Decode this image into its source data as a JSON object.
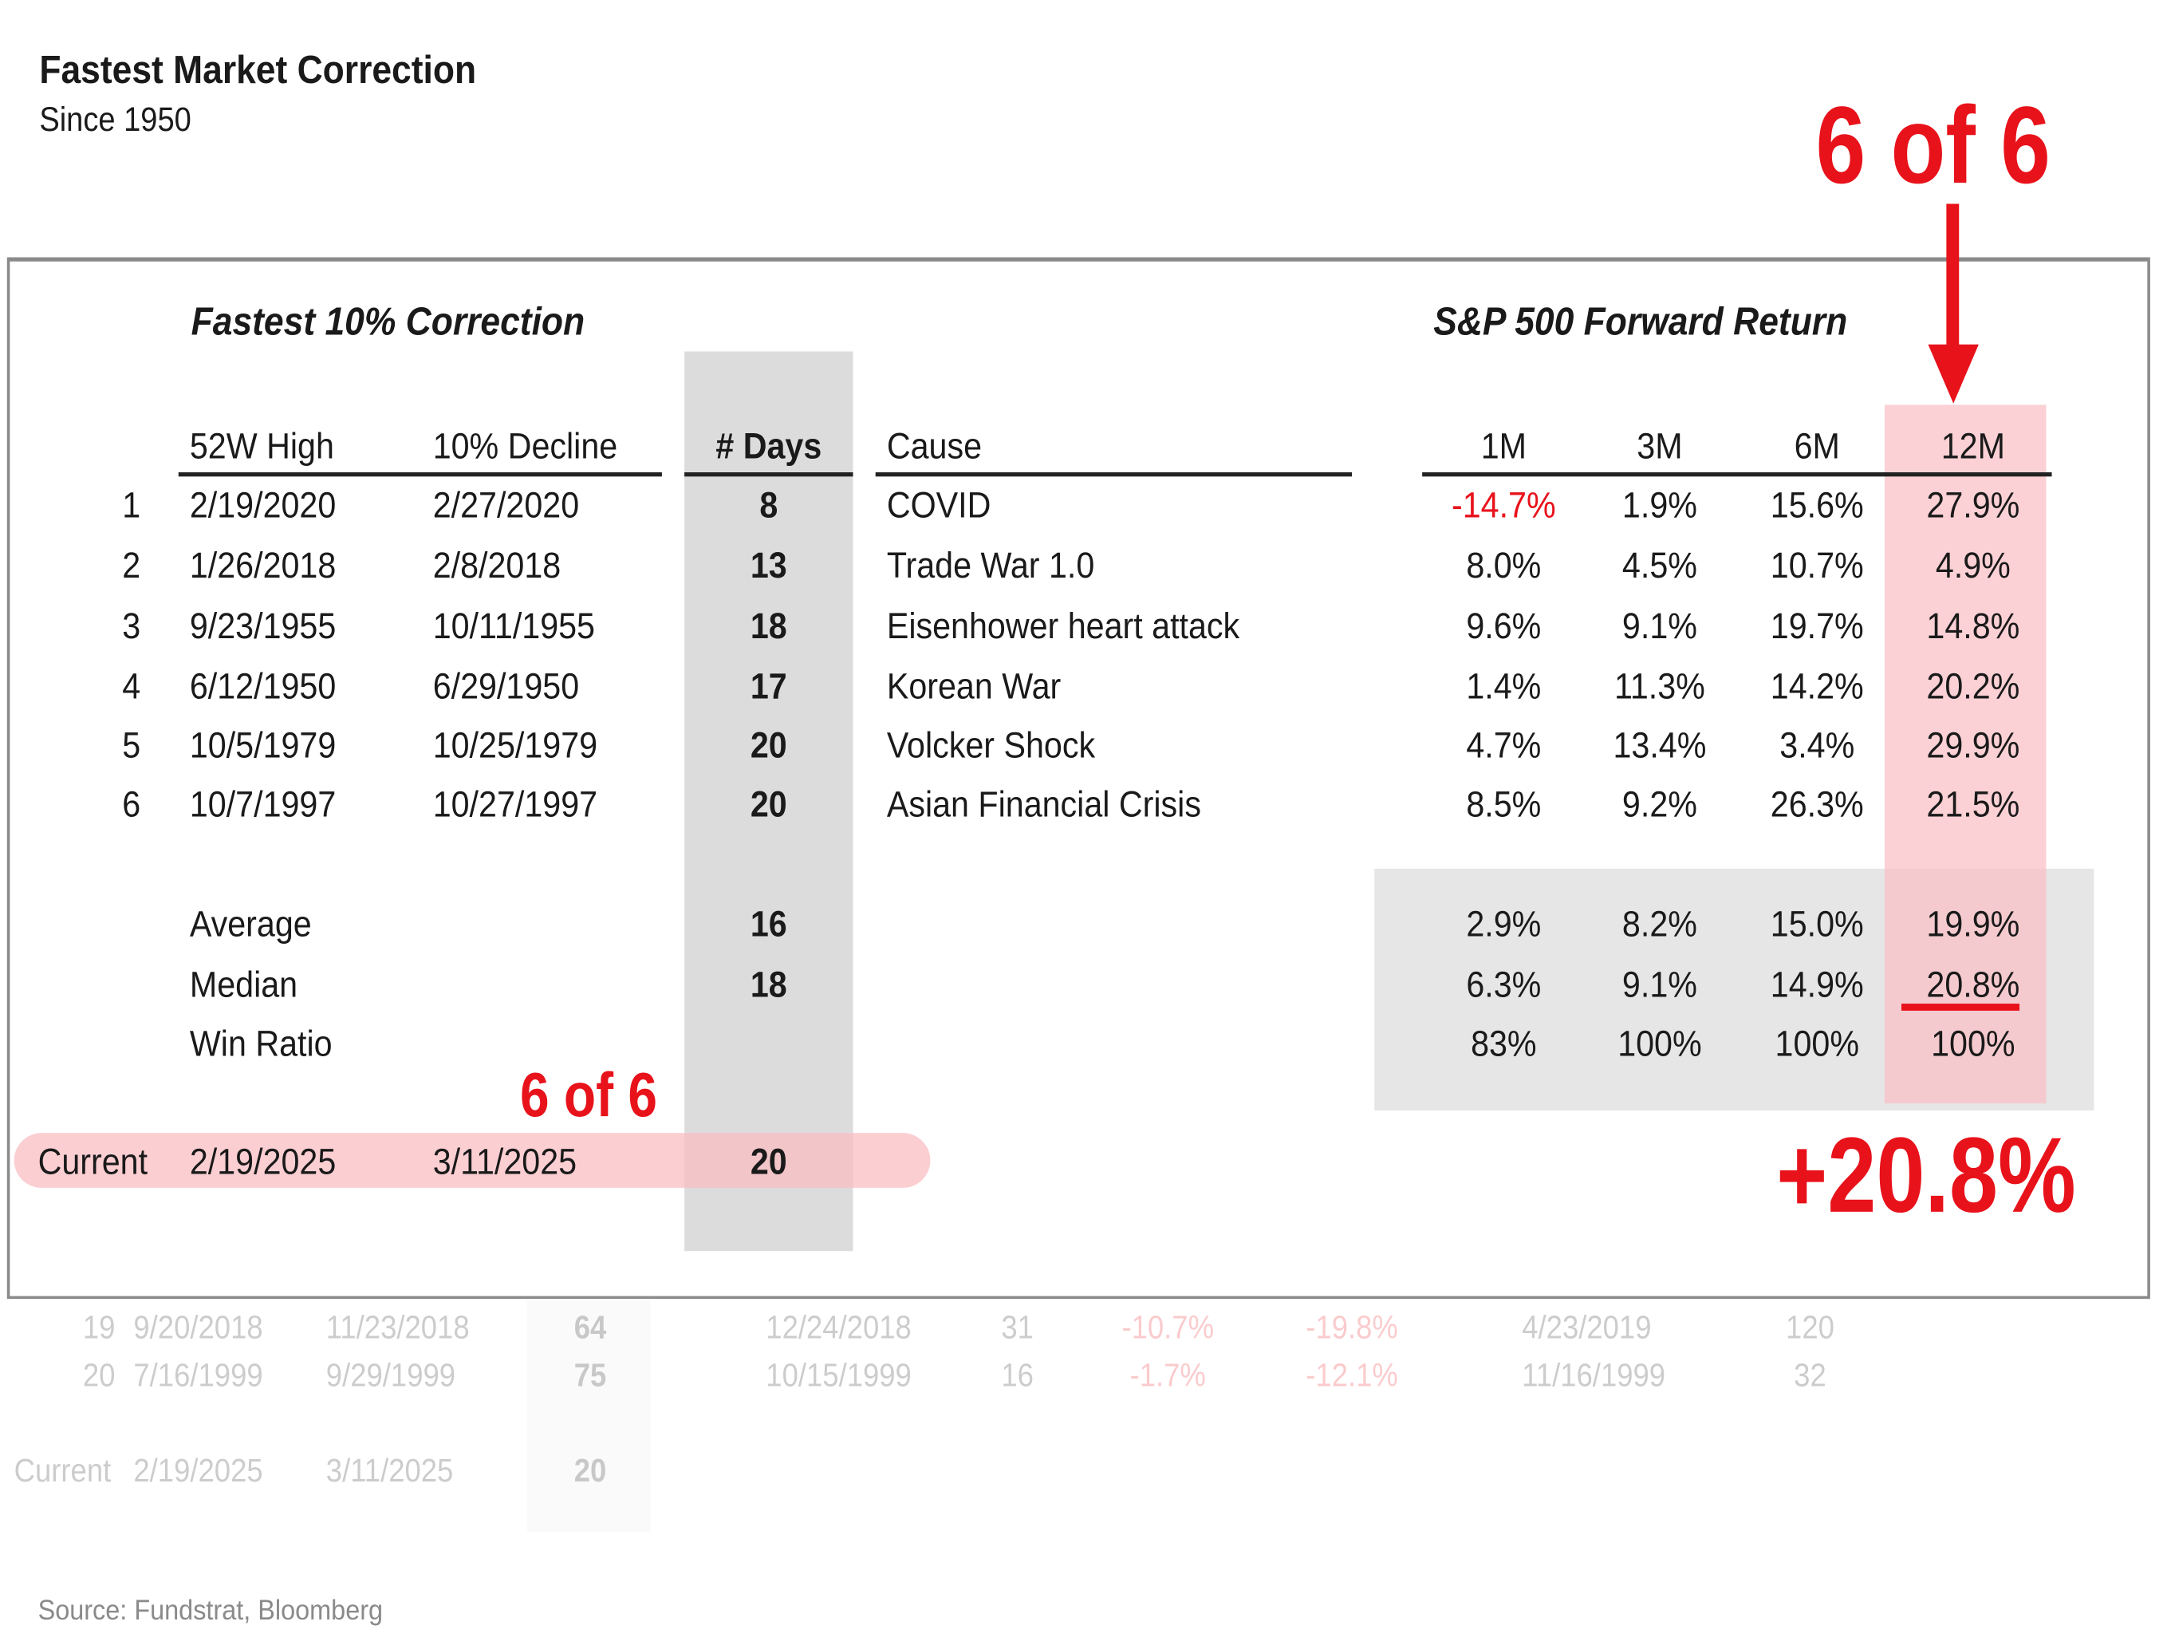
{
  "title": "Fastest Market Correction",
  "subtitle": "Since 1950",
  "left_section_title": "Fastest 10% Correction",
  "right_section_title": "S&P 500 Forward Return",
  "headers": {
    "high": "52W High",
    "decline": "10% Decline",
    "days": "# Days",
    "cause": "Cause",
    "m1": "1M",
    "m3": "3M",
    "m6": "6M",
    "m12": "12M"
  },
  "rows": [
    {
      "n": "1",
      "high": "2/19/2020",
      "decline": "2/27/2020",
      "days": "8",
      "cause": "COVID",
      "m1": "-14.7%",
      "m3": "1.9%",
      "m6": "15.6%",
      "m12": "27.9%"
    },
    {
      "n": "2",
      "high": "1/26/2018",
      "decline": "2/8/2018",
      "days": "13",
      "cause": "Trade War 1.0",
      "m1": "8.0%",
      "m3": "4.5%",
      "m6": "10.7%",
      "m12": "4.9%"
    },
    {
      "n": "3",
      "high": "9/23/1955",
      "decline": "10/11/1955",
      "days": "18",
      "cause": "Eisenhower heart attack",
      "m1": "9.6%",
      "m3": "9.1%",
      "m6": "19.7%",
      "m12": "14.8%"
    },
    {
      "n": "4",
      "high": "6/12/1950",
      "decline": "6/29/1950",
      "days": "17",
      "cause": "Korean War",
      "m1": "1.4%",
      "m3": "11.3%",
      "m6": "14.2%",
      "m12": "20.2%"
    },
    {
      "n": "5",
      "high": "10/5/1979",
      "decline": "10/25/1979",
      "days": "20",
      "cause": "Volcker Shock",
      "m1": "4.7%",
      "m3": "13.4%",
      "m6": "3.4%",
      "m12": "29.9%"
    },
    {
      "n": "6",
      "high": "10/7/1997",
      "decline": "10/27/1997",
      "days": "20",
      "cause": "Asian Financial Crisis",
      "m1": "8.5%",
      "m3": "9.2%",
      "m6": "26.3%",
      "m12": "21.5%"
    }
  ],
  "stats": [
    {
      "label": "Average",
      "days": "16",
      "m1": "2.9%",
      "m3": "8.2%",
      "m6": "15.0%",
      "m12": "19.9%"
    },
    {
      "label": "Median",
      "days": "18",
      "m1": "6.3%",
      "m3": "9.1%",
      "m6": "14.9%",
      "m12": "20.8%"
    },
    {
      "label": "Win Ratio",
      "days": "",
      "m1": "83%",
      "m3": "100%",
      "m6": "100%",
      "m12": "100%"
    }
  ],
  "current": {
    "label": "Current",
    "high": "2/19/2025",
    "decline": "3/11/2025",
    "days": "20"
  },
  "annotations": {
    "six_of_six_top": "6 of 6",
    "six_of_six_small": "6 of 6",
    "median_callout": "+20.8%"
  },
  "faded_rows": [
    {
      "n": "19",
      "high": "9/20/2018",
      "decline": "11/23/2018",
      "days": "64",
      "low": "12/24/2018",
      "ldays": "31",
      "a": "-10.7%",
      "b": "-19.8%",
      "recover": "4/23/2019",
      "rdays": "120"
    },
    {
      "n": "20",
      "high": "7/16/1999",
      "decline": "9/29/1999",
      "days": "75",
      "low": "10/15/1999",
      "ldays": "16",
      "a": "-1.7%",
      "b": "-12.1%",
      "recover": "11/16/1999",
      "rdays": "32"
    }
  ],
  "faded_current": {
    "label": "Current",
    "high": "2/19/2025",
    "decline": "3/11/2025",
    "days": "20"
  },
  "source": "Source: Fundstrat, Bloomberg",
  "colors": {
    "accent": "#e8121b",
    "pink": "#fbd0d3",
    "gray": "#dcdcdc"
  }
}
